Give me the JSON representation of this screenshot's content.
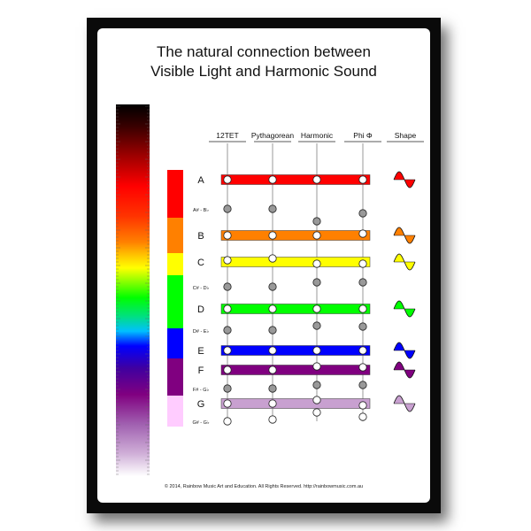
{
  "title": {
    "line1": "The natural connection between",
    "line2": "Visible Light and Harmonic Sound"
  },
  "columns": [
    "12TET",
    "Pythagorean",
    "Harmonic",
    "Phi Φ",
    "Shape"
  ],
  "notes": [
    {
      "label": "A",
      "kind": "natural",
      "color": "#ff0000"
    },
    {
      "label": "A# - B♭",
      "kind": "sharp"
    },
    {
      "label": "B",
      "kind": "natural",
      "color": "#ff8000"
    },
    {
      "label": "C",
      "kind": "natural",
      "color": "#ffff00"
    },
    {
      "label": "C# - D♭",
      "kind": "sharp"
    },
    {
      "label": "D",
      "kind": "natural",
      "color": "#00ff00"
    },
    {
      "label": "D# - E♭",
      "kind": "sharp"
    },
    {
      "label": "E",
      "kind": "natural",
      "color": "#0000ff"
    },
    {
      "label": "F",
      "kind": "natural",
      "color": "#800080"
    },
    {
      "label": "F# - G♭",
      "kind": "sharp"
    },
    {
      "label": "G",
      "kind": "natural",
      "color": "#c8a0d0"
    },
    {
      "label": "G# - G♭",
      "kind": "sharp"
    }
  ],
  "spectrum_colors": [
    "#000000",
    "#3a0000",
    "#a00000",
    "#ff0000",
    "#ff3300",
    "#ff8000",
    "#ffcc00",
    "#ffff00",
    "#80ff00",
    "#00ff00",
    "#00e080",
    "#00c0ff",
    "#0000ff",
    "#4000a0",
    "#800080",
    "#a060b0",
    "#d0b0d8",
    "#ffffff"
  ],
  "footer": "© 2014, Rainbow Music Art and Education. All Rights Reserved.  http://rainbowmusic.com.au"
}
